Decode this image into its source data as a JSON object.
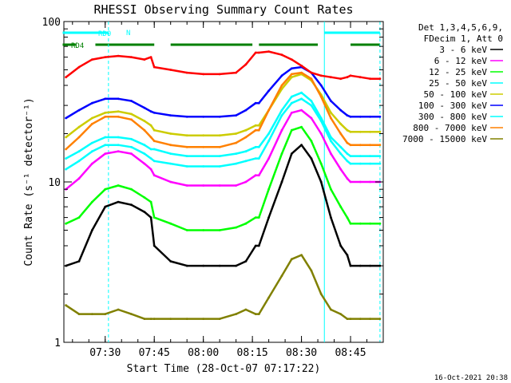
{
  "chart_data": {
    "type": "line",
    "title": "RHESSI Observing Summary Count Rates",
    "xlabel": "Start Time (28-Oct-07 07:17:22)",
    "ylabel": "Count Rate (s⁻¹ detector⁻¹)",
    "x_ticks": [
      "07:30",
      "07:45",
      "08:00",
      "08:15",
      "08:30",
      "08:45"
    ],
    "y_ticks": [
      "1",
      "10",
      "100"
    ],
    "y_scale": "log",
    "ylim": [
      1,
      100
    ],
    "xlim": [
      "07:17:22",
      "08:55"
    ],
    "grid": false,
    "legend_header": [
      "Det 1,3,4,5,6,9,",
      "FDecim 1, Att 0"
    ],
    "legend_position": "right",
    "timestamp": "16-Oct-2021 20:38",
    "flags": [
      {
        "label": "RD0",
        "color": "#00ffff",
        "segments": [
          [
            "07:17",
            "07:31"
          ],
          [
            "08:37",
            "08:54"
          ]
        ]
      },
      {
        "label": "N",
        "color": "#00ffff",
        "segments": []
      },
      {
        "label": "RD4",
        "color": "#008000",
        "segments": [
          [
            "07:17",
            "07:21"
          ],
          [
            "07:27",
            "07:45"
          ],
          [
            "07:50",
            "08:15"
          ],
          [
            "08:17",
            "08:35"
          ],
          [
            "08:45",
            "08:54"
          ]
        ]
      }
    ],
    "x": [
      "07:18",
      "07:22",
      "07:26",
      "07:30",
      "07:34",
      "07:38",
      "07:42",
      "07:44",
      "07:45",
      "07:50",
      "07:55",
      "08:00",
      "08:05",
      "08:10",
      "08:13",
      "08:16",
      "08:17",
      "08:20",
      "08:24",
      "08:27",
      "08:30",
      "08:33",
      "08:36",
      "08:39",
      "08:42",
      "08:44",
      "08:45",
      "08:48",
      "08:51",
      "08:54"
    ],
    "series": [
      {
        "name": "3 - 6 keV",
        "color": "#000000",
        "values": [
          3.0,
          3.2,
          5.0,
          7.0,
          7.5,
          7.2,
          6.5,
          6.0,
          4.0,
          3.2,
          3.0,
          3.0,
          3.0,
          3.0,
          3.2,
          4.0,
          4.0,
          6.0,
          10.0,
          15.0,
          17.0,
          14.0,
          10.0,
          6.0,
          4.0,
          3.5,
          3.0,
          3.0,
          3.0,
          3.0
        ]
      },
      {
        "name": "6 - 12 keV",
        "color": "#ff00ff",
        "values": [
          9.0,
          10.5,
          13.0,
          15.0,
          15.5,
          15.0,
          13.0,
          12.0,
          11.0,
          10.0,
          9.5,
          9.5,
          9.5,
          9.5,
          10.0,
          11.0,
          11.0,
          14.0,
          21.0,
          27.0,
          28.0,
          25.0,
          20.0,
          15.0,
          12.0,
          10.5,
          10.0,
          10.0,
          10.0,
          10.0
        ]
      },
      {
        "name": "12 - 25 keV",
        "color": "#00ff00",
        "values": [
          5.5,
          6.0,
          7.5,
          9.0,
          9.5,
          9.0,
          8.0,
          7.5,
          6.0,
          5.5,
          5.0,
          5.0,
          5.0,
          5.2,
          5.5,
          6.0,
          6.0,
          9.0,
          15.0,
          21.0,
          22.0,
          18.0,
          13.0,
          9.0,
          7.0,
          6.0,
          5.5,
          5.5,
          5.5,
          5.5
        ]
      },
      {
        "name": "25 - 50 keV",
        "color": "#00ffff",
        "values": [
          12.0,
          13.5,
          15.5,
          17.0,
          17.0,
          16.5,
          15.0,
          14.0,
          13.5,
          13.0,
          12.5,
          12.5,
          12.5,
          13.0,
          13.5,
          14.0,
          14.0,
          18.0,
          26.0,
          31.0,
          33.0,
          30.0,
          24.0,
          18.0,
          15.0,
          13.5,
          13.0,
          13.0,
          13.0,
          13.0
        ]
      },
      {
        "name": "50 - 100 keV",
        "color": "#cccc00",
        "values": [
          19.0,
          22.0,
          25.0,
          27.0,
          27.5,
          26.5,
          24.0,
          22.5,
          21.0,
          20.0,
          19.5,
          19.5,
          19.5,
          20.0,
          21.0,
          22.5,
          22.5,
          28.0,
          38.0,
          45.0,
          47.0,
          43.0,
          35.0,
          27.0,
          23.0,
          21.0,
          20.5,
          20.5,
          20.5,
          20.5
        ]
      },
      {
        "name": "100 - 300 keV",
        "color": "#0000ff",
        "values": [
          25.0,
          28.0,
          31.0,
          33.0,
          33.0,
          32.0,
          29.0,
          27.5,
          27.0,
          26.0,
          25.5,
          25.5,
          25.5,
          26.0,
          28.0,
          31.0,
          31.0,
          37.0,
          46.0,
          51.0,
          52.0,
          48.0,
          40.0,
          32.0,
          28.0,
          26.0,
          25.5,
          25.5,
          25.5,
          25.5
        ]
      },
      {
        "name": "300 - 800 keV",
        "color": "#00ffff",
        "values": [
          14.0,
          15.5,
          17.5,
          19.0,
          19.0,
          18.5,
          17.0,
          16.0,
          16.0,
          15.0,
          14.5,
          14.5,
          14.5,
          15.0,
          15.5,
          16.5,
          16.5,
          20.0,
          28.0,
          34.0,
          36.0,
          32.0,
          25.0,
          19.0,
          16.5,
          15.0,
          14.5,
          14.5,
          14.5,
          14.5
        ]
      },
      {
        "name": "800 - 7000 keV",
        "color": "#ff8000",
        "values": [
          16.0,
          19.0,
          23.0,
          25.5,
          25.5,
          24.5,
          21.0,
          19.0,
          18.0,
          17.0,
          16.5,
          16.5,
          16.5,
          17.5,
          19.0,
          21.0,
          21.0,
          28.0,
          40.0,
          47.0,
          48.0,
          44.0,
          34.0,
          25.0,
          20.0,
          17.5,
          17.0,
          17.0,
          17.0,
          17.0
        ]
      },
      {
        "name": "7000 - 15000 keV",
        "color": "#808000",
        "values": [
          1.7,
          1.5,
          1.5,
          1.5,
          1.6,
          1.5,
          1.4,
          1.4,
          1.4,
          1.4,
          1.4,
          1.4,
          1.4,
          1.5,
          1.6,
          1.5,
          1.5,
          1.9,
          2.6,
          3.3,
          3.5,
          2.8,
          2.0,
          1.6,
          1.5,
          1.4,
          1.4,
          1.4,
          1.4,
          1.4
        ]
      },
      {
        "name": "",
        "color": "#ff0000",
        "values": [
          45.0,
          52.0,
          58.0,
          60.0,
          61.0,
          60.0,
          58.0,
          60.0,
          52.0,
          50.0,
          48.0,
          47.0,
          47.0,
          48.0,
          54.0,
          64.0,
          64.0,
          65.0,
          62.0,
          58.0,
          53.0,
          48.0,
          46.0,
          45.0,
          44.0,
          45.0,
          46.0,
          45.0,
          44.0,
          44.0
        ]
      }
    ]
  }
}
